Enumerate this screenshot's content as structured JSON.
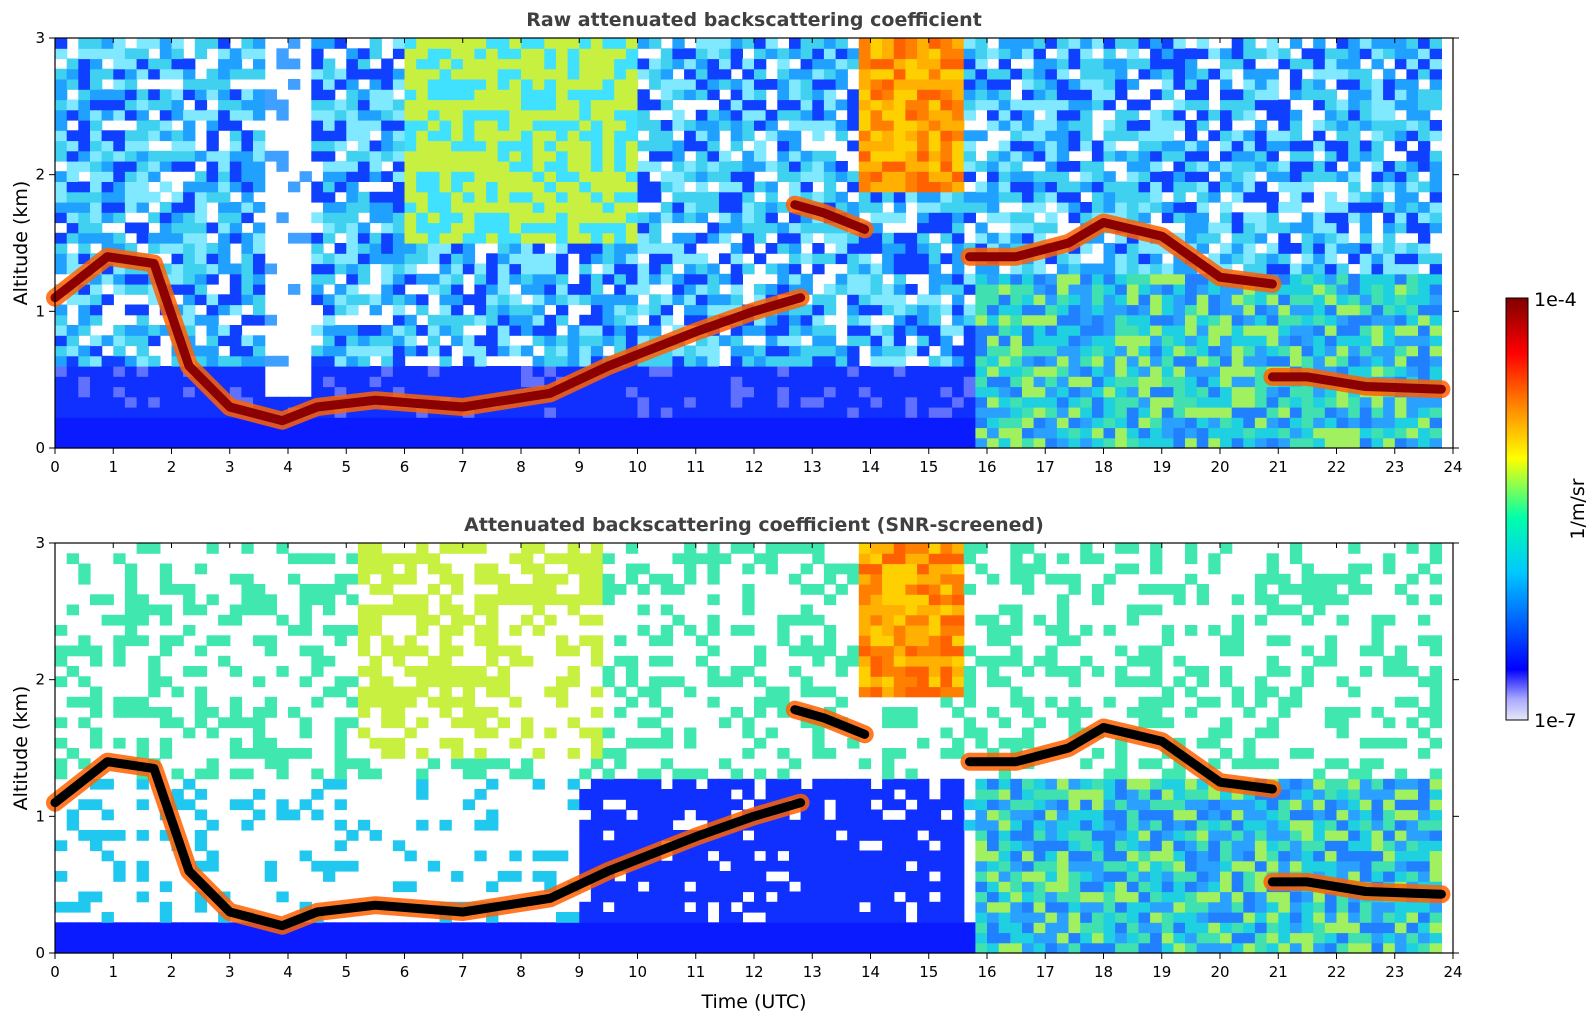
{
  "chart_data": [
    {
      "type": "heatmap",
      "title": "Raw attenuated backscattering coefficient",
      "xlabel": "",
      "ylabel": "Altitude (km)",
      "xlim": [
        0,
        24
      ],
      "ylim": [
        0,
        3
      ],
      "xticks": [
        "0",
        "1",
        "2",
        "3",
        "4",
        "5",
        "6",
        "7",
        "8",
        "9",
        "10",
        "11",
        "12",
        "13",
        "14",
        "15",
        "16",
        "17",
        "18",
        "19",
        "20",
        "21",
        "22",
        "23",
        "24"
      ],
      "yticks": [
        "0",
        "1",
        "2",
        "3"
      ],
      "layers": [
        {
          "t": [
            0.0,
            0.9,
            1.7,
            2.3,
            3.0,
            3.9,
            4.5,
            5.5,
            7.0,
            8.5,
            9.5,
            11.0,
            12.0,
            12.8
          ],
          "alt": [
            1.1,
            1.4,
            1.35,
            0.6,
            0.3,
            0.2,
            0.3,
            0.35,
            0.3,
            0.4,
            0.6,
            0.85,
            1.0,
            1.1
          ]
        },
        {
          "t": [
            12.7,
            13.2,
            13.9
          ],
          "alt": [
            1.78,
            1.72,
            1.6
          ]
        },
        {
          "t": [
            15.7,
            16.5,
            17.4,
            18.0,
            19.0,
            20.0,
            20.9
          ],
          "alt": [
            1.4,
            1.4,
            1.5,
            1.65,
            1.55,
            1.25,
            1.2
          ]
        },
        {
          "t": [
            20.9,
            21.5,
            22.5,
            23.8
          ],
          "alt": [
            0.52,
            0.52,
            0.45,
            0.43
          ]
        }
      ]
    },
    {
      "type": "heatmap",
      "title": "Attenuated backscattering coefficient (SNR-screened)",
      "xlabel": "Time (UTC)",
      "ylabel": "Altitude (km)",
      "xlim": [
        0,
        24
      ],
      "ylim": [
        0,
        3
      ],
      "xticks": [
        "0",
        "1",
        "2",
        "3",
        "4",
        "5",
        "6",
        "7",
        "8",
        "9",
        "10",
        "11",
        "12",
        "13",
        "14",
        "15",
        "16",
        "17",
        "18",
        "19",
        "20",
        "21",
        "22",
        "23",
        "24"
      ],
      "yticks": [
        "0",
        "1",
        "2",
        "3"
      ],
      "screened": true
    }
  ],
  "colorbar": {
    "max_label": "1e-4",
    "min_label": "1e-7",
    "unit_label": "1/m/sr",
    "colors": [
      "#e8e8f8",
      "#0000ff",
      "#00c8ff",
      "#00ffaa",
      "#ffff00",
      "#ff8000",
      "#ff0000",
      "#800000"
    ]
  }
}
